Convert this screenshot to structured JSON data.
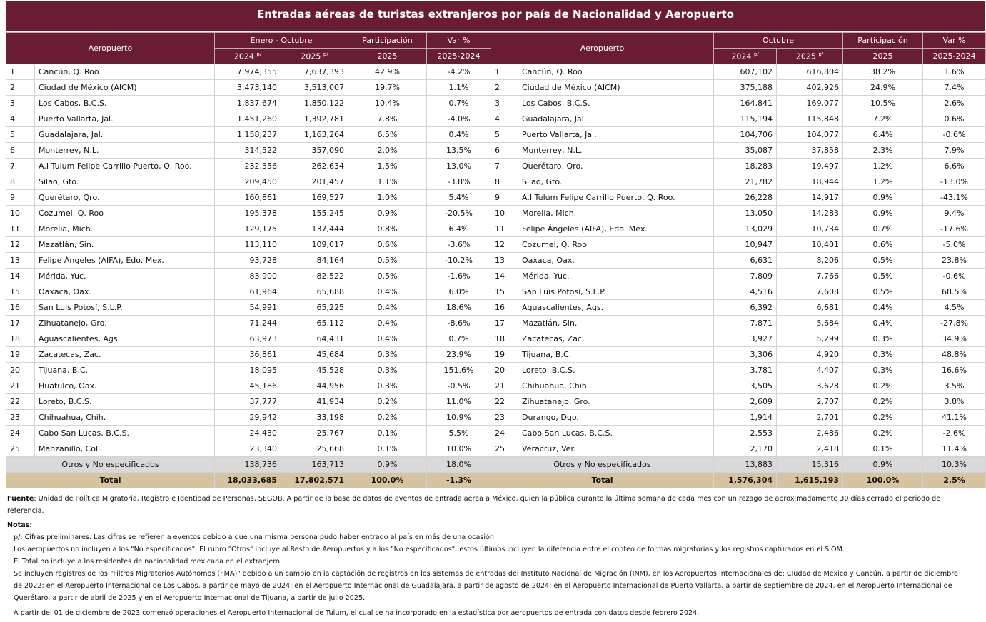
{
  "title": "Entradas aéreas de turistas extranjeros por país de Nacionalidad y Aeropuerto",
  "tables": [
    {
      "header": {
        "airport": "Aeropuerto",
        "period": "Enero - Octubre",
        "years": [
          "2024",
          "2025"
        ],
        "mark": "p/",
        "share": "Participación",
        "share_year": "2025",
        "change": "Var %",
        "change_years": "2025-2024"
      },
      "rows": [
        [
          "1",
          "Cancún, Q. Roo",
          "7,974,355",
          "7,637,393",
          "42.9%",
          "-4.2%"
        ],
        [
          "2",
          "Ciudad de México (AICM)",
          "3,473,140",
          "3,513,007",
          "19.7%",
          "1.1%"
        ],
        [
          "3",
          "Los Cabos, B.C.S.",
          "1,837,674",
          "1,850,122",
          "10.4%",
          "0.7%"
        ],
        [
          "4",
          "Puerto Vallarta, Jal.",
          "1,451,260",
          "1,392,781",
          "7.8%",
          "-4.0%"
        ],
        [
          "5",
          "Guadalajara, Jal.",
          "1,158,237",
          "1,163,264",
          "6.5%",
          "0.4%"
        ],
        [
          "6",
          "Monterrey, N.L.",
          "314,522",
          "357,090",
          "2.0%",
          "13.5%"
        ],
        [
          "7",
          "A.I Tulum Felipe Carrillo Puerto, Q. Roo.",
          "232,356",
          "262,634",
          "1.5%",
          "13.0%"
        ],
        [
          "8",
          "Silao, Gto.",
          "209,450",
          "201,457",
          "1.1%",
          "-3.8%"
        ],
        [
          "9",
          "Querétaro, Qro.",
          "160,861",
          "169,527",
          "1.0%",
          "5.4%"
        ],
        [
          "10",
          "Cozumel, Q. Roo",
          "195,378",
          "155,245",
          "0.9%",
          "-20.5%"
        ],
        [
          "11",
          "Morelia, Mich.",
          "129,175",
          "137,444",
          "0.8%",
          "6.4%"
        ],
        [
          "12",
          "Mazatlán, Sin.",
          "113,110",
          "109,017",
          "0.6%",
          "-3.6%"
        ],
        [
          "13",
          "Felipe Ángeles (AIFA), Edo. Mex.",
          "93,728",
          "84,164",
          "0.5%",
          "-10.2%"
        ],
        [
          "14",
          "Mérida, Yuc.",
          "83,900",
          "82,522",
          "0.5%",
          "-1.6%"
        ],
        [
          "15",
          "Oaxaca, Oax.",
          "61,964",
          "65,688",
          "0.4%",
          "6.0%"
        ],
        [
          "16",
          "San Luis Potosí, S.L.P.",
          "54,991",
          "65,225",
          "0.4%",
          "18.6%"
        ],
        [
          "17",
          "Zihuatanejo, Gro.",
          "71,244",
          "65,112",
          "0.4%",
          "-8.6%"
        ],
        [
          "18",
          "Aguascalientes, Ags.",
          "63,973",
          "64,431",
          "0.4%",
          "0.7%"
        ],
        [
          "19",
          "Zacatecas, Zac.",
          "36,861",
          "45,684",
          "0.3%",
          "23.9%"
        ],
        [
          "20",
          "Tijuana, B.C.",
          "18,095",
          "45,528",
          "0.3%",
          "151.6%"
        ],
        [
          "21",
          "Huatulco, Oax.",
          "45,186",
          "44,956",
          "0.3%",
          "-0.5%"
        ],
        [
          "22",
          "Loreto, B.C.S.",
          "37,777",
          "41,934",
          "0.2%",
          "11.0%"
        ],
        [
          "23",
          "Chihuahua, Chih.",
          "29,942",
          "33,198",
          "0.2%",
          "10.9%"
        ],
        [
          "24",
          "Cabo San Lucas, B.C.S.",
          "24,430",
          "25,767",
          "0.1%",
          "5.5%"
        ],
        [
          "25",
          "Manzanillo, Col.",
          "23,340",
          "25,668",
          "0.1%",
          "10.0%"
        ]
      ],
      "others": [
        "Otros y No especificados",
        "138,736",
        "163,713",
        "0.9%",
        "18.0%"
      ],
      "total": [
        "Total",
        "18,033,685",
        "17,802,571",
        "100.0%",
        "-1.3%"
      ]
    },
    {
      "header": {
        "airport": "Aeropuerto",
        "period": "Octubre",
        "years": [
          "2024",
          "2025"
        ],
        "mark": "p/",
        "share": "Participación",
        "share_year": "2025",
        "change": "Var %",
        "change_years": "2025-2024"
      },
      "rows": [
        [
          "1",
          "Cancún, Q. Roo",
          "607,102",
          "616,804",
          "38.2%",
          "1.6%"
        ],
        [
          "2",
          "Ciudad de México (AICM)",
          "375,188",
          "402,926",
          "24.9%",
          "7.4%"
        ],
        [
          "3",
          "Los Cabos, B.C.S.",
          "164,841",
          "169,077",
          "10.5%",
          "2.6%"
        ],
        [
          "4",
          "Guadalajara, Jal.",
          "115,194",
          "115,848",
          "7.2%",
          "0.6%"
        ],
        [
          "5",
          "Puerto Vallarta, Jal.",
          "104,706",
          "104,077",
          "6.4%",
          "-0.6%"
        ],
        [
          "6",
          "Monterrey, N.L.",
          "35,087",
          "37,858",
          "2.3%",
          "7.9%"
        ],
        [
          "7",
          "Querétaro, Qro.",
          "18,283",
          "19,497",
          "1.2%",
          "6.6%"
        ],
        [
          "8",
          "Silao, Gto.",
          "21,782",
          "18,944",
          "1.2%",
          "-13.0%"
        ],
        [
          "9",
          "A.I Tulum Felipe Carrillo Puerto, Q. Roo.",
          "26,228",
          "14,917",
          "0.9%",
          "-43.1%"
        ],
        [
          "10",
          "Morelia, Mich.",
          "13,050",
          "14,283",
          "0.9%",
          "9.4%"
        ],
        [
          "11",
          "Felipe Ángeles (AIFA), Edo. Mex.",
          "13,029",
          "10,734",
          "0.7%",
          "-17.6%"
        ],
        [
          "12",
          "Cozumel, Q. Roo",
          "10,947",
          "10,401",
          "0.6%",
          "-5.0%"
        ],
        [
          "13",
          "Oaxaca, Oax.",
          "6,631",
          "8,206",
          "0.5%",
          "23.8%"
        ],
        [
          "14",
          "Mérida, Yuc.",
          "7,809",
          "7,766",
          "0.5%",
          "-0.6%"
        ],
        [
          "15",
          "San Luis Potosí, S.L.P.",
          "4,516",
          "7,608",
          "0.5%",
          "68.5%"
        ],
        [
          "16",
          "Aguascalientes, Ags.",
          "6,392",
          "6,681",
          "0.4%",
          "4.5%"
        ],
        [
          "17",
          "Mazatlán, Sin.",
          "7,871",
          "5,684",
          "0.4%",
          "-27.8%"
        ],
        [
          "18",
          "Zacatecas, Zac.",
          "3,927",
          "5,299",
          "0.3%",
          "34.9%"
        ],
        [
          "19",
          "Tijuana, B.C.",
          "3,306",
          "4,920",
          "0.3%",
          "48.8%"
        ],
        [
          "20",
          "Loreto, B.C.S.",
          "3,781",
          "4,407",
          "0.3%",
          "16.6%"
        ],
        [
          "21",
          "Chihuahua, Chih.",
          "3,505",
          "3,628",
          "0.2%",
          "3.5%"
        ],
        [
          "22",
          "Zihuatanejo, Gro.",
          "2,609",
          "2,707",
          "0.2%",
          "3.8%"
        ],
        [
          "23",
          "Durango, Dgo.",
          "1,914",
          "2,701",
          "0.2%",
          "41.1%"
        ],
        [
          "24",
          "Cabo San Lucas, B.C.S.",
          "2,553",
          "2,486",
          "0.2%",
          "-2.6%"
        ],
        [
          "25",
          "Veracruz, Ver.",
          "2,170",
          "2,418",
          "0.1%",
          "11.4%"
        ]
      ],
      "others": [
        "Otros y No especificados",
        "13,883",
        "15,316",
        "0.9%",
        "10.3%"
      ],
      "total": [
        "Total",
        "1,576,304",
        "1,615,193",
        "100.0%",
        "2.5%"
      ]
    }
  ],
  "source": {
    "label": "Fuente",
    "text": ": Unidad de Política Migratoria, Registro e Identidad de Personas, SEGOB. A partir de la base de datos de eventos de entrada aérea a México, quien la pública durante la última semana de cada mes con un rezago de aproximadamente 30 días cerrado el periodo de referencia."
  },
  "notes": {
    "label": "Notas:",
    "items": [
      "p/: Cifras preliminares.   Las cifras se refieren a eventos debido a que una misma persona pudo haber entrado al país en más de una ocasión.",
      "Los aeropuertos no incluyen a los \"No especificados\".   El rubro \"Otros\" incluye al Resto de Aeropuertos y a los \"No especificados\";  estos últimos incluyen la diferencia entre el conteo de formas migratorias y los registros capturados en el SIOM.",
      "El Total no incluye a los residentes de nacionalidad mexicana en el extranjero.",
      "Se incluyen registros de los \"Filtros Migratorios Autónomos (FMA)\" debido a un cambio en la captación de registros en los sistemas de entradas del Instituto Nacional de Migración (INM), en los Aeropuertos Internacionales de: Ciudad de México y Cancún, a partir de diciembre de 2022; en el Aeropuerto Internacional de Los Cabos, a partir de mayo de 2024; en el Aeropuerto Internacional de Guadalajara, a partir de agosto de 2024; en el Aeropuerto Internacional de Puerto Vallarta, a partir de septiembre de 2024, en el Aeropuerto Internacional de Querétaro, a partir de abril de 2025 y en el Aeropuerto Internacional de Tijuana, a partir de julio 2025.",
      "A partir del 01 de diciembre de 2023 comenzó operaciones el Aeropuerto Internacional de Tulum, el cual se ha incorporado en la estadística por aeropuertos de entrada con datos desde febrero 2024."
    ]
  }
}
